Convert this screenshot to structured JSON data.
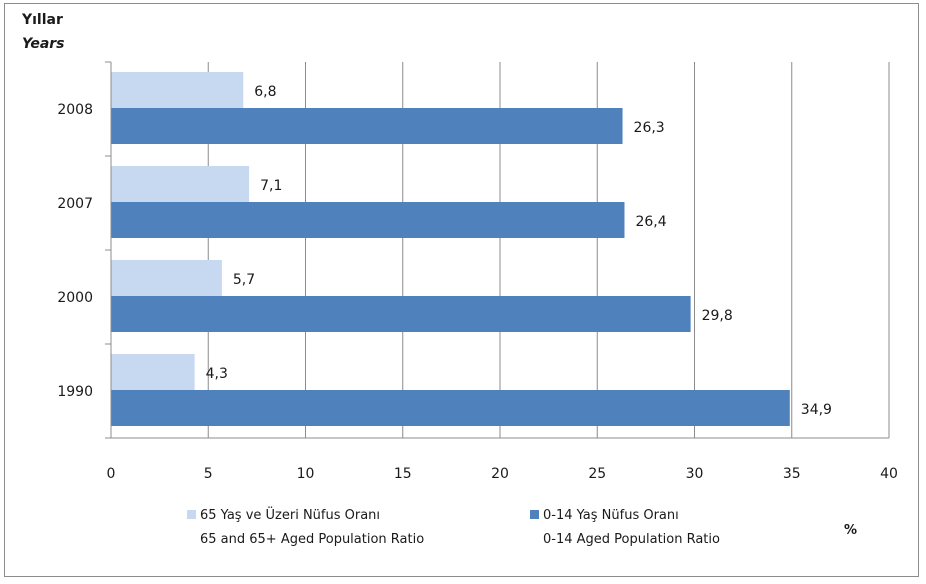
{
  "chart_data": {
    "type": "bar",
    "orientation": "horizontal",
    "y_title_line1": "Yıllar",
    "y_title_line2": "Years",
    "x_unit": "%",
    "categories": [
      "2008",
      "2007",
      "2000",
      "1990"
    ],
    "series": [
      {
        "name_line1": "65 Yaş ve Üzeri Nüfus Oranı",
        "name_line2": "65 and 65+ Aged Population Ratio",
        "color": "#c6d9f1",
        "values": [
          6.8,
          7.1,
          5.7,
          4.3
        ],
        "labels": [
          "6,8",
          "7,1",
          "5,7",
          "4,3"
        ]
      },
      {
        "name_line1": "0-14 Yaş Nüfus Oranı",
        "name_line2": "0-14 Aged Population Ratio",
        "color": "#4f81bd",
        "values": [
          26.3,
          26.4,
          29.8,
          34.9
        ],
        "labels": [
          "26,3",
          "26,4",
          "29,8",
          "34,9"
        ]
      }
    ],
    "xlim": [
      0,
      40
    ],
    "x_ticks": [
      "0",
      "5",
      "10",
      "15",
      "20",
      "25",
      "30",
      "35",
      "40"
    ],
    "grid": "vertical",
    "legend_position": "bottom"
  }
}
